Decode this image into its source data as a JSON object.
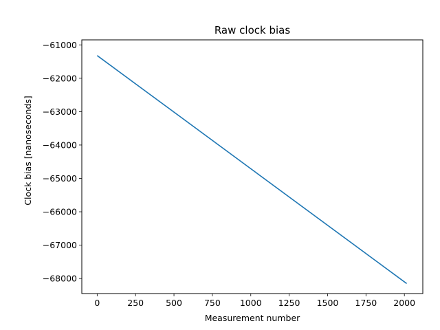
{
  "chart_data": {
    "type": "line",
    "title": "Raw clock bias",
    "xlabel": "Measurement number",
    "ylabel": "Clock bias [nanoseconds]",
    "xlim": [
      -100,
      2120
    ],
    "ylim": [
      -68450,
      -60850
    ],
    "xticks": [
      0,
      250,
      500,
      750,
      1000,
      1250,
      1500,
      1750,
      2000
    ],
    "yticks": [
      -61000,
      -62000,
      -63000,
      -64000,
      -65000,
      -66000,
      -67000,
      -68000
    ],
    "grid": false,
    "series": [
      {
        "color": "#1f77b4",
        "x": [
          0,
          2015
        ],
        "y": [
          -61320,
          -68150
        ]
      }
    ]
  }
}
